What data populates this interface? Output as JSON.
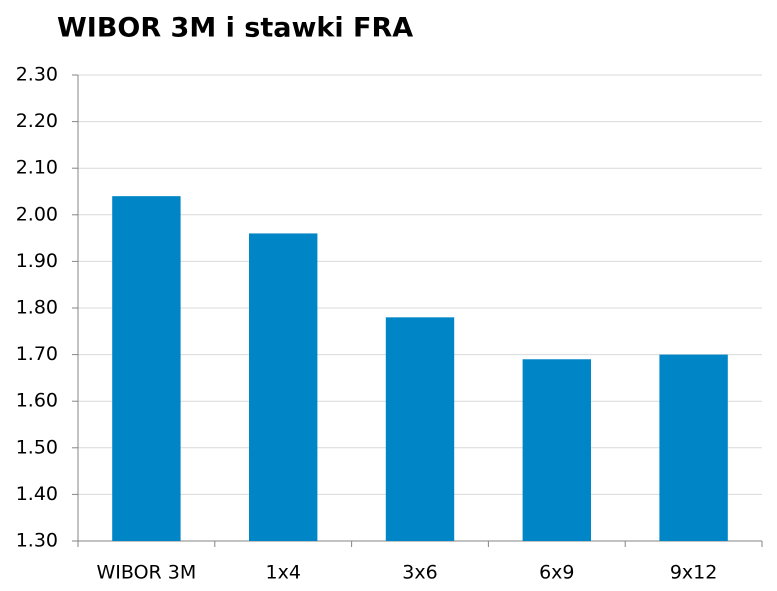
{
  "chart_data": {
    "type": "bar",
    "title": "WIBOR 3M i stawki FRA",
    "categories": [
      "WIBOR 3M",
      "1x4",
      "3x6",
      "6x9",
      "9x12"
    ],
    "values": [
      2.04,
      1.96,
      1.78,
      1.69,
      1.7
    ],
    "color": "#0085c7",
    "ylim": [
      1.3,
      2.3
    ],
    "yticks": [
      {
        "value": 1.3,
        "label": "1.30"
      },
      {
        "value": 1.4,
        "label": "1.40"
      },
      {
        "value": 1.5,
        "label": "1.50"
      },
      {
        "value": 1.6,
        "label": "1.60"
      },
      {
        "value": 1.7,
        "label": "1.70"
      },
      {
        "value": 1.8,
        "label": "1.80"
      },
      {
        "value": 1.9,
        "label": "1.90"
      },
      {
        "value": 2.0,
        "label": "2.00"
      },
      {
        "value": 2.1,
        "label": "2.10"
      },
      {
        "value": 2.2,
        "label": "2.20"
      },
      {
        "value": 2.3,
        "label": "2.30"
      }
    ],
    "grid": true
  }
}
